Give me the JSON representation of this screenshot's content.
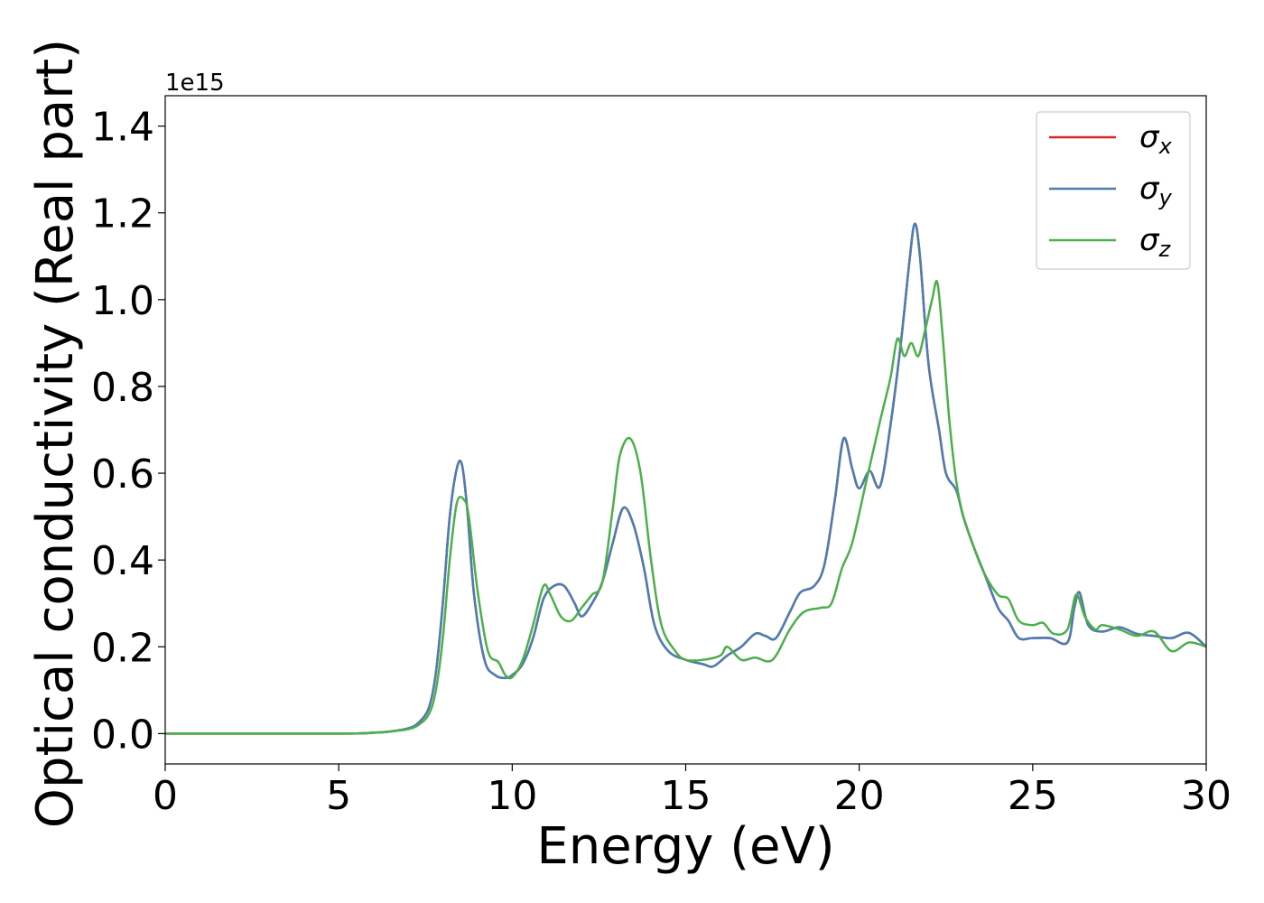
{
  "chart_data": {
    "type": "line",
    "xlabel": "Energy (eV)",
    "ylabel": "Optical conductivity (Real part)",
    "y_offset_label": "1e15",
    "y_scale_factor": 1000000000000000.0,
    "xlim": [
      0,
      30
    ],
    "ylim": [
      -0.07,
      1.47
    ],
    "x_ticks": [
      0,
      5,
      10,
      15,
      20,
      25,
      30
    ],
    "x_tick_labels": [
      "0",
      "5",
      "10",
      "15",
      "20",
      "25",
      "30"
    ],
    "y_ticks": [
      0.0,
      0.2,
      0.4,
      0.6,
      0.8,
      1.0,
      1.2,
      1.4
    ],
    "y_tick_labels": [
      "0.0",
      "0.2",
      "0.4",
      "0.6",
      "0.8",
      "1.0",
      "1.2",
      "1.4"
    ],
    "grid": false,
    "legend_position": "top-right",
    "series": [
      {
        "name": "σx",
        "symbol": "σ",
        "subscript": "x",
        "color": "#d62728",
        "x": [
          0,
          5,
          6,
          6.5,
          7,
          7.3,
          7.6,
          7.8,
          8.0,
          8.2,
          8.4,
          8.55,
          8.7,
          8.9,
          9.2,
          9.5,
          9.8,
          10.0,
          10.3,
          10.6,
          10.9,
          11.2,
          11.5,
          11.8,
          12.0,
          12.3,
          12.6,
          12.9,
          13.2,
          13.5,
          13.8,
          14.1,
          14.5,
          15.0,
          15.5,
          15.8,
          16.2,
          16.6,
          17.0,
          17.3,
          17.6,
          18.0,
          18.3,
          18.7,
          19.0,
          19.3,
          19.55,
          19.8,
          20.0,
          20.3,
          20.6,
          20.9,
          21.2,
          21.45,
          21.6,
          21.75,
          22.0,
          22.3,
          22.5,
          22.8,
          23.0,
          23.3,
          23.6,
          24.0,
          24.3,
          24.6,
          25.0,
          25.5,
          26.0,
          26.2,
          26.35,
          26.6,
          27.0,
          27.5,
          28.0,
          28.5,
          29.0,
          29.5,
          30.0
        ],
        "values": [
          0.0,
          0.0,
          0.002,
          0.005,
          0.012,
          0.025,
          0.06,
          0.14,
          0.3,
          0.5,
          0.61,
          0.62,
          0.52,
          0.32,
          0.17,
          0.135,
          0.128,
          0.135,
          0.16,
          0.22,
          0.31,
          0.34,
          0.34,
          0.3,
          0.27,
          0.3,
          0.35,
          0.44,
          0.52,
          0.48,
          0.38,
          0.25,
          0.19,
          0.17,
          0.16,
          0.155,
          0.18,
          0.2,
          0.23,
          0.225,
          0.22,
          0.28,
          0.325,
          0.34,
          0.39,
          0.54,
          0.68,
          0.61,
          0.565,
          0.605,
          0.57,
          0.71,
          0.9,
          1.09,
          1.175,
          1.1,
          0.85,
          0.7,
          0.6,
          0.56,
          0.5,
          0.43,
          0.37,
          0.29,
          0.26,
          0.22,
          0.22,
          0.22,
          0.21,
          0.29,
          0.325,
          0.25,
          0.235,
          0.245,
          0.23,
          0.225,
          0.22,
          0.232,
          0.2
        ]
      },
      {
        "name": "σy",
        "symbol": "σ",
        "subscript": "y",
        "color": "#4a7eb3",
        "x": [
          0,
          5,
          6,
          6.5,
          7,
          7.3,
          7.6,
          7.8,
          8.0,
          8.2,
          8.4,
          8.55,
          8.7,
          8.9,
          9.2,
          9.5,
          9.8,
          10.0,
          10.3,
          10.6,
          10.9,
          11.2,
          11.5,
          11.8,
          12.0,
          12.3,
          12.6,
          12.9,
          13.2,
          13.5,
          13.8,
          14.1,
          14.5,
          15.0,
          15.5,
          15.8,
          16.2,
          16.6,
          17.0,
          17.3,
          17.6,
          18.0,
          18.3,
          18.7,
          19.0,
          19.3,
          19.55,
          19.8,
          20.0,
          20.3,
          20.6,
          20.9,
          21.2,
          21.45,
          21.6,
          21.75,
          22.0,
          22.3,
          22.5,
          22.8,
          23.0,
          23.3,
          23.6,
          24.0,
          24.3,
          24.6,
          25.0,
          25.5,
          26.0,
          26.2,
          26.35,
          26.6,
          27.0,
          27.5,
          28.0,
          28.5,
          29.0,
          29.5,
          30.0
        ],
        "values": [
          0.0,
          0.0,
          0.002,
          0.005,
          0.012,
          0.025,
          0.06,
          0.14,
          0.3,
          0.5,
          0.61,
          0.62,
          0.52,
          0.32,
          0.17,
          0.135,
          0.128,
          0.135,
          0.16,
          0.22,
          0.31,
          0.34,
          0.34,
          0.3,
          0.27,
          0.3,
          0.35,
          0.44,
          0.52,
          0.48,
          0.38,
          0.25,
          0.19,
          0.17,
          0.16,
          0.155,
          0.18,
          0.2,
          0.23,
          0.225,
          0.22,
          0.28,
          0.325,
          0.34,
          0.39,
          0.54,
          0.68,
          0.61,
          0.565,
          0.605,
          0.57,
          0.71,
          0.9,
          1.09,
          1.175,
          1.1,
          0.85,
          0.7,
          0.6,
          0.56,
          0.5,
          0.43,
          0.37,
          0.29,
          0.26,
          0.22,
          0.22,
          0.22,
          0.21,
          0.29,
          0.325,
          0.25,
          0.235,
          0.245,
          0.23,
          0.225,
          0.22,
          0.232,
          0.2
        ]
      },
      {
        "name": "σz",
        "symbol": "σ",
        "subscript": "z",
        "color": "#4daf4a",
        "x": [
          0,
          5,
          6,
          6.5,
          7,
          7.3,
          7.6,
          7.8,
          8.0,
          8.2,
          8.4,
          8.6,
          8.75,
          9.0,
          9.3,
          9.6,
          9.8,
          10.0,
          10.3,
          10.6,
          10.9,
          11.1,
          11.4,
          11.7,
          12.0,
          12.3,
          12.6,
          12.9,
          13.1,
          13.4,
          13.7,
          14.0,
          14.3,
          14.7,
          15.0,
          15.5,
          16.0,
          16.2,
          16.6,
          17.0,
          17.5,
          18.0,
          18.4,
          18.9,
          19.2,
          19.5,
          19.8,
          20.2,
          20.6,
          20.9,
          21.1,
          21.3,
          21.5,
          21.7,
          21.9,
          22.1,
          22.25,
          22.4,
          22.6,
          22.8,
          23.0,
          23.3,
          23.6,
          24.0,
          24.3,
          24.6,
          25.0,
          25.3,
          25.6,
          26.0,
          26.25,
          26.5,
          26.8,
          27.0,
          27.5,
          28.0,
          28.5,
          29.0,
          29.5,
          30.0
        ],
        "values": [
          0.0,
          0.0,
          0.002,
          0.005,
          0.01,
          0.02,
          0.045,
          0.1,
          0.22,
          0.4,
          0.53,
          0.54,
          0.5,
          0.33,
          0.19,
          0.165,
          0.135,
          0.13,
          0.17,
          0.25,
          0.34,
          0.32,
          0.27,
          0.26,
          0.29,
          0.32,
          0.35,
          0.52,
          0.64,
          0.68,
          0.6,
          0.4,
          0.25,
          0.19,
          0.17,
          0.17,
          0.18,
          0.2,
          0.17,
          0.175,
          0.17,
          0.24,
          0.28,
          0.29,
          0.3,
          0.38,
          0.44,
          0.58,
          0.72,
          0.82,
          0.91,
          0.87,
          0.9,
          0.87,
          0.93,
          1.0,
          1.04,
          0.92,
          0.72,
          0.58,
          0.5,
          0.43,
          0.37,
          0.32,
          0.31,
          0.26,
          0.25,
          0.255,
          0.23,
          0.24,
          0.32,
          0.27,
          0.24,
          0.25,
          0.24,
          0.225,
          0.235,
          0.19,
          0.21,
          0.2
        ]
      }
    ]
  }
}
